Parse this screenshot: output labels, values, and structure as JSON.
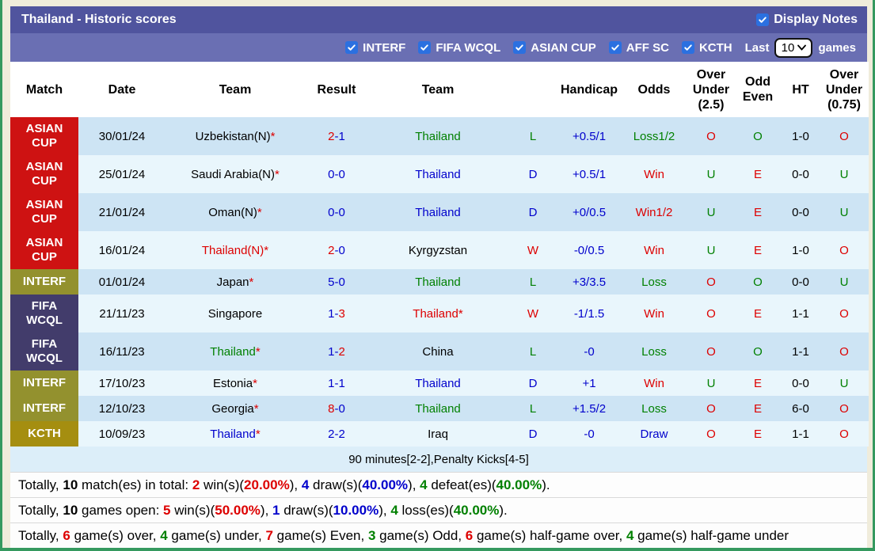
{
  "title_bar": {
    "title": "Thailand - Historic scores",
    "display_notes_label": "Display Notes"
  },
  "filter_bar": {
    "filters": [
      "INTERF",
      "FIFA WCQL",
      "ASIAN CUP",
      "AFF SC",
      "KCTH"
    ],
    "last_label": "Last",
    "last_value": "10",
    "games_label": "games"
  },
  "table": {
    "headers": [
      "Match",
      "Date",
      "Team",
      "Result",
      "Team",
      "",
      "Handicap",
      "Odds",
      "Over Under (2.5)",
      "Odd Even",
      "HT",
      "Over Under (0.75)"
    ],
    "rows": [
      {
        "match": "ASIAN CUP",
        "date": "30/01/24",
        "team1": {
          "text": "Uzbekistan(N)",
          "star": true,
          "c": "black"
        },
        "result": [
          {
            "t": "2",
            "c": "red"
          },
          {
            "t": "-1",
            "c": "blue"
          }
        ],
        "team2": {
          "text": "Thailand",
          "star": false,
          "c": "green"
        },
        "wdl": {
          "t": "L",
          "c": "green"
        },
        "handicap": {
          "t": "+0.5/1",
          "c": "blue"
        },
        "odds": {
          "t": "Loss1/2",
          "c": "green"
        },
        "ou25": {
          "t": "O",
          "c": "red"
        },
        "oe": {
          "t": "O",
          "c": "green"
        },
        "ht": "1-0",
        "ou075": {
          "t": "O",
          "c": "red"
        }
      },
      {
        "match": "ASIAN CUP",
        "date": "25/01/24",
        "team1": {
          "text": "Saudi Arabia(N)",
          "star": true,
          "c": "black"
        },
        "result": [
          {
            "t": "0-0",
            "c": "blue"
          }
        ],
        "team2": {
          "text": "Thailand",
          "star": false,
          "c": "blue"
        },
        "wdl": {
          "t": "D",
          "c": "blue"
        },
        "handicap": {
          "t": "+0.5/1",
          "c": "blue"
        },
        "odds": {
          "t": "Win",
          "c": "red"
        },
        "ou25": {
          "t": "U",
          "c": "green"
        },
        "oe": {
          "t": "E",
          "c": "red"
        },
        "ht": "0-0",
        "ou075": {
          "t": "U",
          "c": "green"
        }
      },
      {
        "match": "ASIAN CUP",
        "date": "21/01/24",
        "team1": {
          "text": "Oman(N)",
          "star": true,
          "c": "black"
        },
        "result": [
          {
            "t": "0-0",
            "c": "blue"
          }
        ],
        "team2": {
          "text": "Thailand",
          "star": false,
          "c": "blue"
        },
        "wdl": {
          "t": "D",
          "c": "blue"
        },
        "handicap": {
          "t": "+0/0.5",
          "c": "blue"
        },
        "odds": {
          "t": "Win1/2",
          "c": "red"
        },
        "ou25": {
          "t": "U",
          "c": "green"
        },
        "oe": {
          "t": "E",
          "c": "red"
        },
        "ht": "0-0",
        "ou075": {
          "t": "U",
          "c": "green"
        }
      },
      {
        "match": "ASIAN CUP",
        "date": "16/01/24",
        "team1": {
          "text": "Thailand(N)",
          "star": true,
          "c": "red"
        },
        "result": [
          {
            "t": "2",
            "c": "red"
          },
          {
            "t": "-0",
            "c": "blue"
          }
        ],
        "team2": {
          "text": "Kyrgyzstan",
          "star": false,
          "c": "black"
        },
        "wdl": {
          "t": "W",
          "c": "red"
        },
        "handicap": {
          "t": "-0/0.5",
          "c": "blue"
        },
        "odds": {
          "t": "Win",
          "c": "red"
        },
        "ou25": {
          "t": "U",
          "c": "green"
        },
        "oe": {
          "t": "E",
          "c": "red"
        },
        "ht": "1-0",
        "ou075": {
          "t": "O",
          "c": "red"
        }
      },
      {
        "match": "INTERF",
        "date": "01/01/24",
        "team1": {
          "text": "Japan",
          "star": true,
          "c": "black"
        },
        "result": [
          {
            "t": "5-0",
            "c": "blue"
          }
        ],
        "team2": {
          "text": "Thailand",
          "star": false,
          "c": "green"
        },
        "wdl": {
          "t": "L",
          "c": "green"
        },
        "handicap": {
          "t": "+3/3.5",
          "c": "blue"
        },
        "odds": {
          "t": "Loss",
          "c": "green"
        },
        "ou25": {
          "t": "O",
          "c": "red"
        },
        "oe": {
          "t": "O",
          "c": "green"
        },
        "ht": "0-0",
        "ou075": {
          "t": "U",
          "c": "green"
        }
      },
      {
        "match": "FIFA WCQL",
        "date": "21/11/23",
        "team1": {
          "text": "Singapore",
          "star": false,
          "c": "black"
        },
        "result": [
          {
            "t": "1-",
            "c": "blue"
          },
          {
            "t": "3",
            "c": "red"
          }
        ],
        "team2": {
          "text": "Thailand",
          "star": true,
          "c": "red"
        },
        "wdl": {
          "t": "W",
          "c": "red"
        },
        "handicap": {
          "t": "-1/1.5",
          "c": "blue"
        },
        "odds": {
          "t": "Win",
          "c": "red"
        },
        "ou25": {
          "t": "O",
          "c": "red"
        },
        "oe": {
          "t": "E",
          "c": "red"
        },
        "ht": "1-1",
        "ou075": {
          "t": "O",
          "c": "red"
        }
      },
      {
        "match": "FIFA WCQL",
        "date": "16/11/23",
        "team1": {
          "text": "Thailand",
          "star": true,
          "c": "green"
        },
        "result": [
          {
            "t": "1-",
            "c": "blue"
          },
          {
            "t": "2",
            "c": "red"
          }
        ],
        "team2": {
          "text": "China",
          "star": false,
          "c": "black"
        },
        "wdl": {
          "t": "L",
          "c": "green"
        },
        "handicap": {
          "t": "-0",
          "c": "blue"
        },
        "odds": {
          "t": "Loss",
          "c": "green"
        },
        "ou25": {
          "t": "O",
          "c": "red"
        },
        "oe": {
          "t": "O",
          "c": "green"
        },
        "ht": "1-1",
        "ou075": {
          "t": "O",
          "c": "red"
        }
      },
      {
        "match": "INTERF",
        "date": "17/10/23",
        "team1": {
          "text": "Estonia",
          "star": true,
          "c": "black"
        },
        "result": [
          {
            "t": "1-1",
            "c": "blue"
          }
        ],
        "team2": {
          "text": "Thailand",
          "star": false,
          "c": "blue"
        },
        "wdl": {
          "t": "D",
          "c": "blue"
        },
        "handicap": {
          "t": "+1",
          "c": "blue"
        },
        "odds": {
          "t": "Win",
          "c": "red"
        },
        "ou25": {
          "t": "U",
          "c": "green"
        },
        "oe": {
          "t": "E",
          "c": "red"
        },
        "ht": "0-0",
        "ou075": {
          "t": "U",
          "c": "green"
        }
      },
      {
        "match": "INTERF",
        "date": "12/10/23",
        "team1": {
          "text": "Georgia",
          "star": true,
          "c": "black"
        },
        "result": [
          {
            "t": "8",
            "c": "red"
          },
          {
            "t": "-0",
            "c": "blue"
          }
        ],
        "team2": {
          "text": "Thailand",
          "star": false,
          "c": "green"
        },
        "wdl": {
          "t": "L",
          "c": "green"
        },
        "handicap": {
          "t": "+1.5/2",
          "c": "blue"
        },
        "odds": {
          "t": "Loss",
          "c": "green"
        },
        "ou25": {
          "t": "O",
          "c": "red"
        },
        "oe": {
          "t": "E",
          "c": "red"
        },
        "ht": "6-0",
        "ou075": {
          "t": "O",
          "c": "red"
        }
      },
      {
        "match": "KCTH",
        "date": "10/09/23",
        "team1": {
          "text": "Thailand",
          "star": true,
          "c": "blue"
        },
        "result": [
          {
            "t": "2-2",
            "c": "blue"
          }
        ],
        "team2": {
          "text": "Iraq",
          "star": false,
          "c": "black"
        },
        "wdl": {
          "t": "D",
          "c": "blue"
        },
        "handicap": {
          "t": "-0",
          "c": "blue"
        },
        "odds": {
          "t": "Draw",
          "c": "blue"
        },
        "ou25": {
          "t": "O",
          "c": "red"
        },
        "oe": {
          "t": "E",
          "c": "red"
        },
        "ht": "1-1",
        "ou075": {
          "t": "O",
          "c": "red"
        }
      }
    ]
  },
  "note_row": "90 minutes[2-2],Penalty Kicks[4-5]",
  "summary": [
    [
      {
        "t": "Totally, ",
        "c": "black"
      },
      {
        "t": "10",
        "c": "black",
        "b": true
      },
      {
        "t": " match(es) in total: ",
        "c": "black"
      },
      {
        "t": "2",
        "c": "red",
        "b": true
      },
      {
        "t": " win(s)(",
        "c": "black"
      },
      {
        "t": "20.00%",
        "c": "red",
        "b": true
      },
      {
        "t": "), ",
        "c": "black"
      },
      {
        "t": "4",
        "c": "blue",
        "b": true
      },
      {
        "t": " draw(s)(",
        "c": "black"
      },
      {
        "t": "40.00%",
        "c": "blue",
        "b": true
      },
      {
        "t": "), ",
        "c": "black"
      },
      {
        "t": "4",
        "c": "green",
        "b": true
      },
      {
        "t": " defeat(es)(",
        "c": "black"
      },
      {
        "t": "40.00%",
        "c": "green",
        "b": true
      },
      {
        "t": ").",
        "c": "black"
      }
    ],
    [
      {
        "t": "Totally, ",
        "c": "black"
      },
      {
        "t": "10",
        "c": "black",
        "b": true
      },
      {
        "t": " games open: ",
        "c": "black"
      },
      {
        "t": "5",
        "c": "red",
        "b": true
      },
      {
        "t": " win(s)(",
        "c": "black"
      },
      {
        "t": "50.00%",
        "c": "red",
        "b": true
      },
      {
        "t": "), ",
        "c": "black"
      },
      {
        "t": "1",
        "c": "blue",
        "b": true
      },
      {
        "t": " draw(s)(",
        "c": "black"
      },
      {
        "t": "10.00%",
        "c": "blue",
        "b": true
      },
      {
        "t": "), ",
        "c": "black"
      },
      {
        "t": "4",
        "c": "green",
        "b": true
      },
      {
        "t": " loss(es)(",
        "c": "black"
      },
      {
        "t": "40.00%",
        "c": "green",
        "b": true
      },
      {
        "t": ").",
        "c": "black"
      }
    ],
    [
      {
        "t": "Totally, ",
        "c": "black"
      },
      {
        "t": "6",
        "c": "red",
        "b": true
      },
      {
        "t": " game(s) over, ",
        "c": "black"
      },
      {
        "t": "4",
        "c": "green",
        "b": true
      },
      {
        "t": " game(s) under, ",
        "c": "black"
      },
      {
        "t": "7",
        "c": "red",
        "b": true
      },
      {
        "t": " game(s) Even, ",
        "c": "black"
      },
      {
        "t": "3",
        "c": "green",
        "b": true
      },
      {
        "t": " game(s) Odd, ",
        "c": "black"
      },
      {
        "t": "6",
        "c": "red",
        "b": true
      },
      {
        "t": " game(s) half-game over, ",
        "c": "black"
      },
      {
        "t": "4",
        "c": "green",
        "b": true
      },
      {
        "t": " game(s) half-game under",
        "c": "black"
      }
    ]
  ],
  "colors": {
    "title_bar": "#50549e",
    "filter_bar": "#6a6fb3",
    "row_dark": "#cde4f4",
    "row_light": "#e9f6fc",
    "note_row_bg": "#dceef9",
    "page_bg": "#f0ecdb",
    "edge_green": "#35995f",
    "checkbox_blue": "#2b70e0",
    "text_red": "#dd0000",
    "text_blue": "#0000cc",
    "text_green": "#008000",
    "badges": {
      "ASIAN CUP": "#ce1212",
      "FIFA WCQL": "#423c6b",
      "INTERF": "#93912e",
      "KCTH": "#a58e10"
    }
  }
}
